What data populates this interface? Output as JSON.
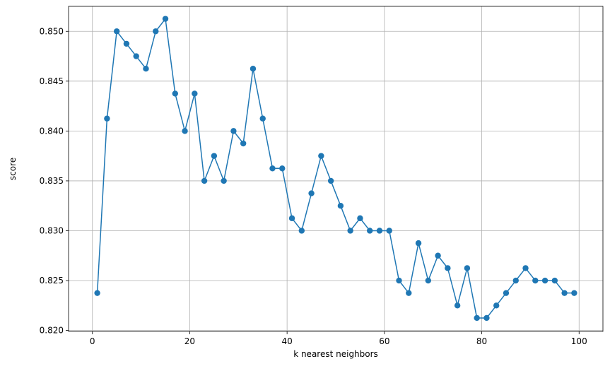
{
  "chart_data": {
    "type": "line",
    "title": "",
    "xlabel": "k nearest neighbors",
    "ylabel": "score",
    "xlim": [
      -4.9,
      104.9
    ],
    "ylim": [
      0.8199,
      0.8525
    ],
    "grid": true,
    "x_ticks": [
      0,
      20,
      40,
      60,
      80,
      100
    ],
    "y_ticks": [
      0.82,
      0.825,
      0.83,
      0.835,
      0.84,
      0.845,
      0.85
    ],
    "x_tick_labels": [
      "0",
      "20",
      "40",
      "60",
      "80",
      "100"
    ],
    "y_tick_labels": [
      "0.820",
      "0.825",
      "0.830",
      "0.835",
      "0.840",
      "0.845",
      "0.850"
    ],
    "color": "#1f77b4",
    "marker": "circle",
    "series": [
      {
        "x": [
          1,
          3,
          5,
          7,
          9,
          11,
          13,
          15,
          17,
          19,
          21,
          23,
          25,
          27,
          29,
          31,
          33,
          35,
          37,
          39,
          41,
          43,
          45,
          47,
          49,
          51,
          53,
          55,
          57,
          59,
          61,
          63,
          65,
          67,
          69,
          71,
          73,
          75,
          77,
          79,
          81,
          83,
          85,
          87,
          89,
          91,
          93,
          95,
          97,
          99
        ],
        "values": [
          0.82375,
          0.84125,
          0.85,
          0.84875,
          0.8475,
          0.84625,
          0.85,
          0.85125,
          0.84375,
          0.84,
          0.84375,
          0.835,
          0.8375,
          0.835,
          0.84,
          0.83875,
          0.84625,
          0.84125,
          0.83625,
          0.83625,
          0.83125,
          0.83,
          0.83375,
          0.8375,
          0.835,
          0.8325,
          0.83,
          0.83125,
          0.83,
          0.83,
          0.83,
          0.825,
          0.82375,
          0.82875,
          0.825,
          0.8275,
          0.82625,
          0.8225,
          0.82625,
          0.82125,
          0.82125,
          0.8225,
          0.82375,
          0.825,
          0.82625,
          0.825,
          0.825,
          0.825,
          0.82375,
          0.82375
        ]
      }
    ]
  }
}
